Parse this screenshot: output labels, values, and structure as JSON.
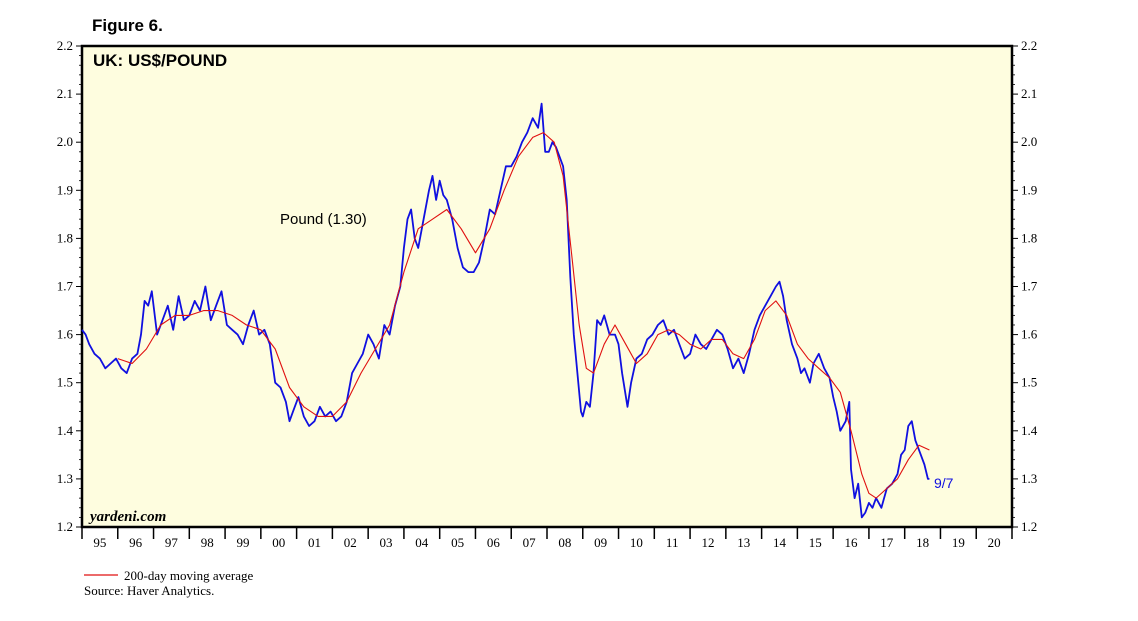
{
  "figure_label": "Figure 6.",
  "watermark": "yardeni.com",
  "footer": {
    "legend_label": "200-day moving average",
    "source": "Source: Haver Analytics."
  },
  "colors": {
    "plot_background": "#fefddf",
    "series_line": "#1010e0",
    "moving_average": "#e01010",
    "frame": "#000000"
  },
  "chart_data": {
    "type": "line",
    "title": "UK: US$/POUND",
    "series_label": "Pound (1.30)",
    "end_label": "9/7",
    "xlabel": "",
    "ylabel": "",
    "ylim": [
      1.2,
      2.2
    ],
    "y_ticks": [
      "1.2",
      "1.3",
      "1.4",
      "1.5",
      "1.6",
      "1.7",
      "1.8",
      "1.9",
      "2.0",
      "2.1",
      "2.2"
    ],
    "x_range": [
      1995,
      2021
    ],
    "x_tick_labels": [
      "95",
      "96",
      "97",
      "98",
      "99",
      "00",
      "01",
      "02",
      "03",
      "04",
      "05",
      "06",
      "07",
      "08",
      "09",
      "10",
      "11",
      "12",
      "13",
      "14",
      "15",
      "16",
      "17",
      "18",
      "19",
      "20"
    ],
    "grid": false,
    "series": [
      {
        "name": "Pound",
        "x": [
          1995.0,
          1995.1,
          1995.2,
          1995.35,
          1995.5,
          1995.65,
          1995.8,
          1995.95,
          1996.1,
          1996.25,
          1996.4,
          1996.55,
          1996.65,
          1996.75,
          1996.85,
          1996.95,
          1997.1,
          1997.25,
          1997.4,
          1997.55,
          1997.7,
          1997.85,
          1998.0,
          1998.15,
          1998.3,
          1998.45,
          1998.6,
          1998.75,
          1998.9,
          1999.05,
          1999.2,
          1999.35,
          1999.5,
          1999.65,
          1999.8,
          1999.95,
          2000.1,
          2000.25,
          2000.4,
          2000.55,
          2000.7,
          2000.8,
          2000.9,
          2001.05,
          2001.2,
          2001.35,
          2001.5,
          2001.65,
          2001.8,
          2001.95,
          2002.1,
          2002.25,
          2002.4,
          2002.55,
          2002.7,
          2002.85,
          2003.0,
          2003.15,
          2003.3,
          2003.45,
          2003.6,
          2003.75,
          2003.9,
          2004.0,
          2004.1,
          2004.2,
          2004.3,
          2004.4,
          2004.55,
          2004.7,
          2004.8,
          2004.9,
          2005.0,
          2005.1,
          2005.2,
          2005.35,
          2005.5,
          2005.65,
          2005.8,
          2005.95,
          2006.1,
          2006.25,
          2006.4,
          2006.55,
          2006.7,
          2006.85,
          2007.0,
          2007.15,
          2007.3,
          2007.45,
          2007.6,
          2007.75,
          2007.85,
          2007.95,
          2008.05,
          2008.15,
          2008.25,
          2008.35,
          2008.45,
          2008.55,
          2008.65,
          2008.75,
          2008.85,
          2008.95,
          2009.0,
          2009.1,
          2009.2,
          2009.3,
          2009.4,
          2009.5,
          2009.6,
          2009.75,
          2009.9,
          2010.0,
          2010.1,
          2010.25,
          2010.35,
          2010.5,
          2010.65,
          2010.8,
          2010.95,
          2011.1,
          2011.25,
          2011.4,
          2011.55,
          2011.7,
          2011.85,
          2012.0,
          2012.15,
          2012.3,
          2012.45,
          2012.6,
          2012.75,
          2012.9,
          2013.05,
          2013.2,
          2013.35,
          2013.5,
          2013.65,
          2013.8,
          2013.95,
          2014.1,
          2014.25,
          2014.4,
          2014.5,
          2014.6,
          2014.7,
          2014.85,
          2015.0,
          2015.1,
          2015.2,
          2015.35,
          2015.45,
          2015.6,
          2015.75,
          2015.9,
          2016.0,
          2016.1,
          2016.2,
          2016.35,
          2016.45,
          2016.5,
          2016.6,
          2016.7,
          2016.8,
          2016.9,
          2017.0,
          2017.1,
          2017.2,
          2017.35,
          2017.5,
          2017.65,
          2017.8,
          2017.9,
          2018.0,
          2018.1,
          2018.2,
          2018.3,
          2018.45,
          2018.55,
          2018.65,
          2018.69
        ],
        "values": [
          1.61,
          1.6,
          1.58,
          1.56,
          1.55,
          1.53,
          1.54,
          1.55,
          1.53,
          1.52,
          1.55,
          1.56,
          1.6,
          1.67,
          1.66,
          1.69,
          1.6,
          1.63,
          1.66,
          1.61,
          1.68,
          1.63,
          1.64,
          1.67,
          1.65,
          1.7,
          1.63,
          1.66,
          1.69,
          1.62,
          1.61,
          1.6,
          1.58,
          1.62,
          1.65,
          1.6,
          1.61,
          1.58,
          1.5,
          1.49,
          1.46,
          1.42,
          1.44,
          1.47,
          1.43,
          1.41,
          1.42,
          1.45,
          1.43,
          1.44,
          1.42,
          1.43,
          1.46,
          1.52,
          1.54,
          1.56,
          1.6,
          1.58,
          1.55,
          1.62,
          1.6,
          1.66,
          1.7,
          1.78,
          1.84,
          1.86,
          1.8,
          1.78,
          1.84,
          1.9,
          1.93,
          1.88,
          1.92,
          1.89,
          1.88,
          1.84,
          1.78,
          1.74,
          1.73,
          1.73,
          1.75,
          1.8,
          1.86,
          1.85,
          1.9,
          1.95,
          1.95,
          1.97,
          2.0,
          2.02,
          2.05,
          2.03,
          2.08,
          1.98,
          1.98,
          2.0,
          1.99,
          1.97,
          1.95,
          1.88,
          1.72,
          1.6,
          1.52,
          1.44,
          1.43,
          1.46,
          1.45,
          1.52,
          1.63,
          1.62,
          1.64,
          1.6,
          1.6,
          1.58,
          1.52,
          1.45,
          1.5,
          1.55,
          1.56,
          1.59,
          1.6,
          1.62,
          1.63,
          1.6,
          1.61,
          1.58,
          1.55,
          1.56,
          1.6,
          1.58,
          1.57,
          1.59,
          1.61,
          1.6,
          1.57,
          1.53,
          1.55,
          1.52,
          1.56,
          1.61,
          1.64,
          1.66,
          1.68,
          1.7,
          1.71,
          1.68,
          1.63,
          1.58,
          1.55,
          1.52,
          1.53,
          1.5,
          1.54,
          1.56,
          1.53,
          1.51,
          1.47,
          1.44,
          1.4,
          1.42,
          1.46,
          1.32,
          1.26,
          1.29,
          1.22,
          1.23,
          1.25,
          1.24,
          1.26,
          1.24,
          1.28,
          1.29,
          1.31,
          1.35,
          1.36,
          1.41,
          1.42,
          1.38,
          1.35,
          1.33,
          1.3,
          1.3
        ]
      },
      {
        "name": "200-day moving average",
        "x": [
          1996.0,
          1996.4,
          1996.8,
          1997.2,
          1997.6,
          1998.0,
          1998.4,
          1998.8,
          1999.2,
          1999.6,
          2000.0,
          2000.4,
          2000.8,
          2001.2,
          2001.6,
          2002.0,
          2002.4,
          2002.8,
          2003.2,
          2003.6,
          2004.0,
          2004.4,
          2004.8,
          2005.2,
          2005.6,
          2006.0,
          2006.4,
          2006.8,
          2007.2,
          2007.6,
          2007.9,
          2008.2,
          2008.45,
          2008.7,
          2008.9,
          2009.1,
          2009.3,
          2009.6,
          2009.9,
          2010.2,
          2010.5,
          2010.8,
          2011.1,
          2011.4,
          2011.7,
          2012.0,
          2012.3,
          2012.6,
          2012.9,
          2013.2,
          2013.5,
          2013.8,
          2014.1,
          2014.4,
          2014.7,
          2015.0,
          2015.3,
          2015.6,
          2015.9,
          2016.2,
          2016.5,
          2016.8,
          2017.0,
          2017.2,
          2017.5,
          2017.8,
          2018.1,
          2018.4,
          2018.69
        ],
        "values": [
          1.55,
          1.54,
          1.57,
          1.62,
          1.64,
          1.64,
          1.65,
          1.65,
          1.64,
          1.62,
          1.61,
          1.57,
          1.49,
          1.45,
          1.43,
          1.43,
          1.46,
          1.52,
          1.57,
          1.62,
          1.73,
          1.82,
          1.84,
          1.86,
          1.82,
          1.77,
          1.82,
          1.9,
          1.97,
          2.01,
          2.02,
          2.0,
          1.93,
          1.76,
          1.62,
          1.53,
          1.52,
          1.58,
          1.62,
          1.58,
          1.54,
          1.56,
          1.6,
          1.61,
          1.6,
          1.58,
          1.57,
          1.59,
          1.59,
          1.56,
          1.55,
          1.59,
          1.65,
          1.67,
          1.64,
          1.58,
          1.55,
          1.53,
          1.51,
          1.48,
          1.4,
          1.31,
          1.27,
          1.26,
          1.28,
          1.3,
          1.34,
          1.37,
          1.36
        ]
      }
    ]
  }
}
